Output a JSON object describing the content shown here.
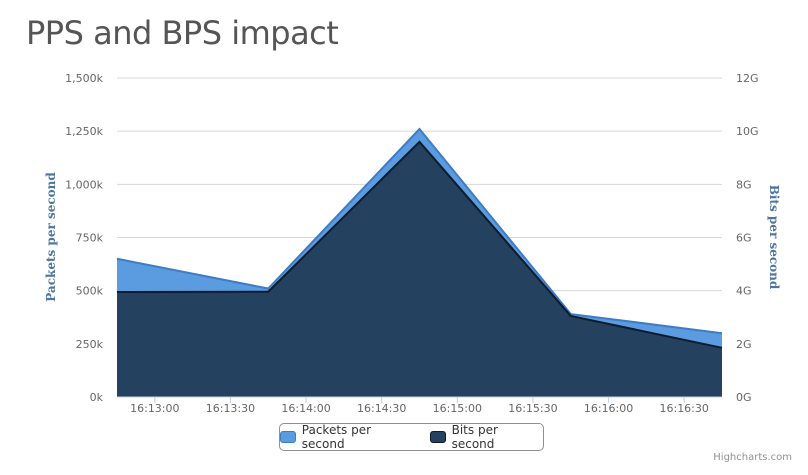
{
  "chart_data": {
    "type": "area",
    "title": "PPS and BPS impact",
    "x": [
      "16:12:45",
      "16:13:45",
      "16:14:45",
      "16:15:45",
      "16:16:45"
    ],
    "x_tick_labels": [
      "16:13:00",
      "16:13:30",
      "16:14:00",
      "16:14:30",
      "16:15:00",
      "16:15:30",
      "16:16:00",
      "16:16:30"
    ],
    "y_left": {
      "label": "Packets per second",
      "range": [
        0,
        1500000
      ],
      "tick_labels": [
        "0k",
        "250k",
        "500k",
        "750k",
        "1,000k",
        "1,250k",
        "1,500k"
      ]
    },
    "y_right": {
      "label": "Bits per second",
      "range": [
        0,
        12000000000
      ],
      "tick_labels": [
        "0G",
        "2G",
        "4G",
        "6G",
        "8G",
        "10G",
        "12G"
      ]
    },
    "series": [
      {
        "name": "Packets per second",
        "axis": "left",
        "color": "#5b9be0",
        "values": [
          650000,
          510000,
          1260000,
          390000,
          300000
        ]
      },
      {
        "name": "Bits per second",
        "axis": "right",
        "color": "#24415f",
        "values": [
          3950000000,
          3960000000,
          9600000000,
          3050000000,
          1850000000
        ]
      }
    ],
    "grid": true,
    "legend_placement": "bottom-center"
  },
  "credits": "Highcharts.com"
}
